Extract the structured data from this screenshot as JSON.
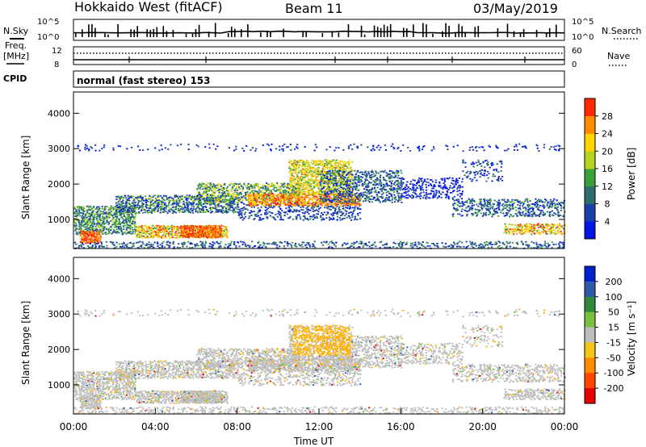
{
  "header": {
    "site": "Hokkaido West (fitACF)",
    "beam": "Beam 11",
    "date": "03/May/2019"
  },
  "sidepanel": {
    "nsky_label": "N.Sky",
    "nsearch_label": "N.Search",
    "freq_label_line1": "Freq.",
    "freq_label_line2": "[MHz]",
    "nave_label": "Nave",
    "cpid_label": "CPID",
    "cpid_value": "normal (fast stereo) 153"
  },
  "chart_data": [
    {
      "type": "line",
      "name": "noise-strip",
      "left_ticks": [
        "10^5",
        "10^0"
      ],
      "right_ticks": [
        "10^5",
        "10^0"
      ],
      "series": [
        {
          "name": "N.Sky",
          "style": "bars"
        },
        {
          "name": "N.Search",
          "style": "dotted"
        }
      ]
    },
    {
      "type": "line",
      "name": "freq-nave-strip",
      "left_ticks": [
        "12",
        "8"
      ],
      "right_ticks": [
        "60",
        "0"
      ]
    },
    {
      "type": "heatmap",
      "name": "power",
      "ylabel": "Slant Range [km]",
      "ylim": [
        180,
        4600
      ],
      "yticks": [
        1000,
        2000,
        3000,
        4000
      ],
      "colorbar": {
        "label": "Power [dB]",
        "ticks": [
          4,
          8,
          12,
          16,
          20,
          24,
          28
        ],
        "range": [
          0,
          32
        ],
        "colors": [
          "#0015e6",
          "#1a3fa8",
          "#2d6d6d",
          "#3aa13a",
          "#b7d31d",
          "#ffd400",
          "#ff8c00",
          "#ff2a00"
        ]
      }
    },
    {
      "type": "heatmap",
      "name": "velocity",
      "ylabel": "Slant Range [km]",
      "xlabel": "Time UT",
      "ylim": [
        180,
        4600
      ],
      "yticks": [
        1000,
        2000,
        3000,
        4000
      ],
      "xticks": [
        "00:00",
        "04:00",
        "08:00",
        "12:00",
        "16:00",
        "20:00",
        "00:00"
      ],
      "xlim_hours": [
        0,
        24
      ],
      "colorbar": {
        "label": "Velocity [m s⁻¹]",
        "ticks": [
          "200",
          "100",
          "50",
          "15",
          "-15",
          "-50",
          "-100",
          "-200"
        ],
        "colors": [
          "#0020d0",
          "#2e5aa8",
          "#2f8a3a",
          "#7ac043",
          "#bdbdbd",
          "#f5c518",
          "#ff8c00",
          "#ff4500",
          "#e60000"
        ]
      }
    }
  ]
}
